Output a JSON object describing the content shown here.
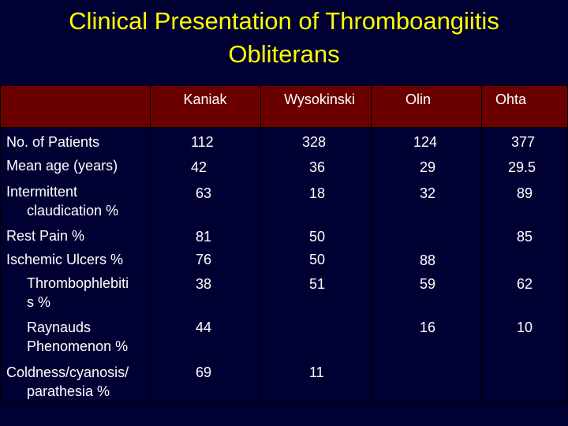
{
  "slide": {
    "title_line1": "Clinical Presentation of Thromboangiitis",
    "title_line2": "Obliterans",
    "colors": {
      "background": "#000033",
      "title": "#ffff00",
      "header_band": "#6b0000",
      "text": "#ffffff"
    }
  },
  "table": {
    "columns": [
      "Kaniak",
      "Wysokinski",
      "Olin",
      "Ohta"
    ],
    "rows": [
      {
        "label": "No. of Patients",
        "values": [
          "112",
          "328",
          "124",
          "377"
        ]
      },
      {
        "label": "Mean age (years)",
        "values": [
          "42",
          "36",
          "29",
          "29.5"
        ]
      },
      {
        "label_line1": "Intermittent",
        "label_line2": "claudication %",
        "values": [
          "63",
          "18",
          "32",
          "89"
        ]
      },
      {
        "label": "Rest Pain %",
        "values": [
          "81",
          "50",
          "",
          "85"
        ]
      },
      {
        "label": "Ischemic Ulcers %",
        "values": [
          "76",
          "50",
          "88",
          ""
        ]
      },
      {
        "label_line1": "Thrombophlebiti",
        "label_line2": "s %",
        "values": [
          "38",
          "51",
          "59",
          "62"
        ]
      },
      {
        "label_line1": "Raynauds",
        "label_line2": "Phenomenon %",
        "values": [
          "44",
          "",
          "16",
          "10"
        ]
      },
      {
        "label_line1": "Coldness/cyanosis/",
        "label_line2": "parathesia %",
        "values": [
          "69",
          "11",
          "",
          ""
        ]
      }
    ]
  }
}
